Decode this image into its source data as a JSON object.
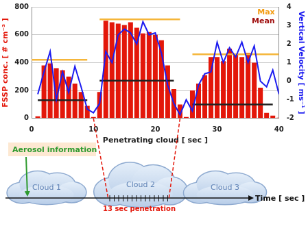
{
  "chart_data": {
    "type": "bar",
    "x_label": "Penetrating cloud [ sec ]",
    "y_label": "FSSP conc. [ # cm⁻³ ]",
    "y2_label": "Vertical Velocity [ ms⁻¹ ]",
    "x": [
      1,
      2,
      3,
      4,
      5,
      6,
      7,
      8,
      9,
      10,
      11,
      12,
      13,
      14,
      15,
      16,
      17,
      18,
      19,
      20,
      21,
      22,
      23,
      24,
      25,
      26,
      27,
      28,
      29,
      30,
      31,
      32,
      33,
      34,
      35,
      36,
      37,
      38,
      39,
      40
    ],
    "xlim": [
      0,
      40
    ],
    "xticks": [
      0,
      10,
      20,
      30,
      40
    ],
    "ylim": [
      0,
      800
    ],
    "yticks": [
      0,
      200,
      400,
      600,
      800
    ],
    "y2lim": [
      -2,
      4
    ],
    "y2ticks": [
      -2,
      -1,
      0,
      1,
      2,
      3,
      4
    ],
    "grid": true,
    "series": [
      {
        "type": "bar",
        "color": "#e3170a",
        "values": [
          15,
          380,
          395,
          360,
          345,
          300,
          250,
          190,
          90,
          10,
          190,
          700,
          690,
          680,
          670,
          690,
          650,
          610,
          620,
          600,
          560,
          380,
          210,
          100,
          10,
          200,
          250,
          310,
          440,
          440,
          410,
          500,
          460,
          440,
          470,
          400,
          220,
          40,
          20,
          5
        ]
      },
      {
        "type": "line",
        "color": "#1c1cf0",
        "axis": "y2",
        "values": [
          -0.7,
          0.5,
          1.6,
          -1.0,
          0.5,
          -0.6,
          0.8,
          -0.3,
          -1.5,
          -1.7,
          -1.2,
          1.6,
          1.0,
          2.5,
          2.8,
          2.6,
          2.0,
          3.2,
          2.5,
          2.6,
          1.5,
          -0.2,
          -1.2,
          -1.8,
          -1.0,
          -1.6,
          -0.2,
          0.4,
          0.5,
          2.1,
          1.0,
          1.8,
          1.3,
          2.1,
          1.0,
          1.9,
          0.0,
          -0.3,
          0.6,
          -0.7
        ]
      },
      {
        "type": "line",
        "color": "#f5b63a",
        "x": [
          0,
          9
        ],
        "values": [
          420,
          420
        ]
      },
      {
        "type": "line",
        "color": "#f5b63a",
        "x": [
          11,
          24
        ],
        "values": [
          710,
          710
        ]
      },
      {
        "type": "line",
        "color": "#f5b63a",
        "x": [
          26,
          40
        ],
        "values": [
          460,
          460
        ]
      },
      {
        "type": "line",
        "color": "#222222",
        "x": [
          1,
          9
        ],
        "values": [
          130,
          130
        ]
      },
      {
        "type": "line",
        "color": "#222222",
        "x": [
          11,
          23
        ],
        "values": [
          270,
          270
        ]
      },
      {
        "type": "line",
        "color": "#222222",
        "x": [
          26,
          39
        ],
        "values": [
          100,
          100
        ]
      }
    ],
    "annotations": [
      {
        "text": "Max",
        "color": "#f39c12"
      },
      {
        "text": "Mean",
        "color": "#a01010"
      }
    ]
  },
  "diagram": {
    "aerosol_label": "Aerosol information",
    "clouds": [
      "Cloud 1",
      "Cloud 2",
      "Cloud 3"
    ],
    "time_label": "Time [ sec ]",
    "penetration_label": "13 sec penetration"
  }
}
